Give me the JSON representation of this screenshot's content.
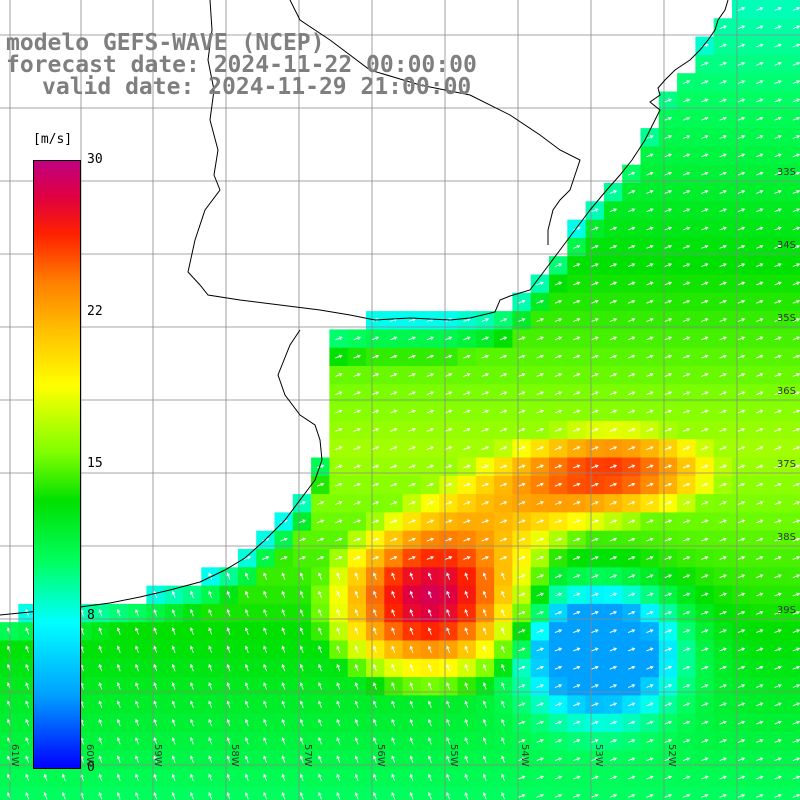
{
  "title": {
    "line1": "modelo GEFS-WAVE (NCEP)",
    "line2": "forecast date: 2024-11-22 00:00:00",
    "line3": "valid date: 2024-11-29 21:00:00"
  },
  "colorbar": {
    "unit": "[m/s]",
    "ticks": [
      "30",
      "22",
      "15",
      "8",
      "0"
    ],
    "colors": [
      "#0000ff",
      "#00a0ff",
      "#00ffff",
      "#00ff60",
      "#00e000",
      "#80ff00",
      "#ffff00",
      "#ffc000",
      "#ff8000",
      "#ff2000",
      "#e00040",
      "#c00080"
    ]
  },
  "axes": {
    "lat_labels": [
      "33S",
      "34S",
      "35S",
      "36S",
      "37S",
      "38S",
      "39S"
    ],
    "lon_labels": [
      "61W",
      "60W",
      "59W",
      "58W",
      "57W",
      "56W",
      "55W",
      "54W",
      "53W",
      "52W"
    ]
  },
  "colors": {
    "grid": "#888888",
    "coast": "#000000",
    "land": "#ffffff",
    "arrow": "#ffffff"
  }
}
